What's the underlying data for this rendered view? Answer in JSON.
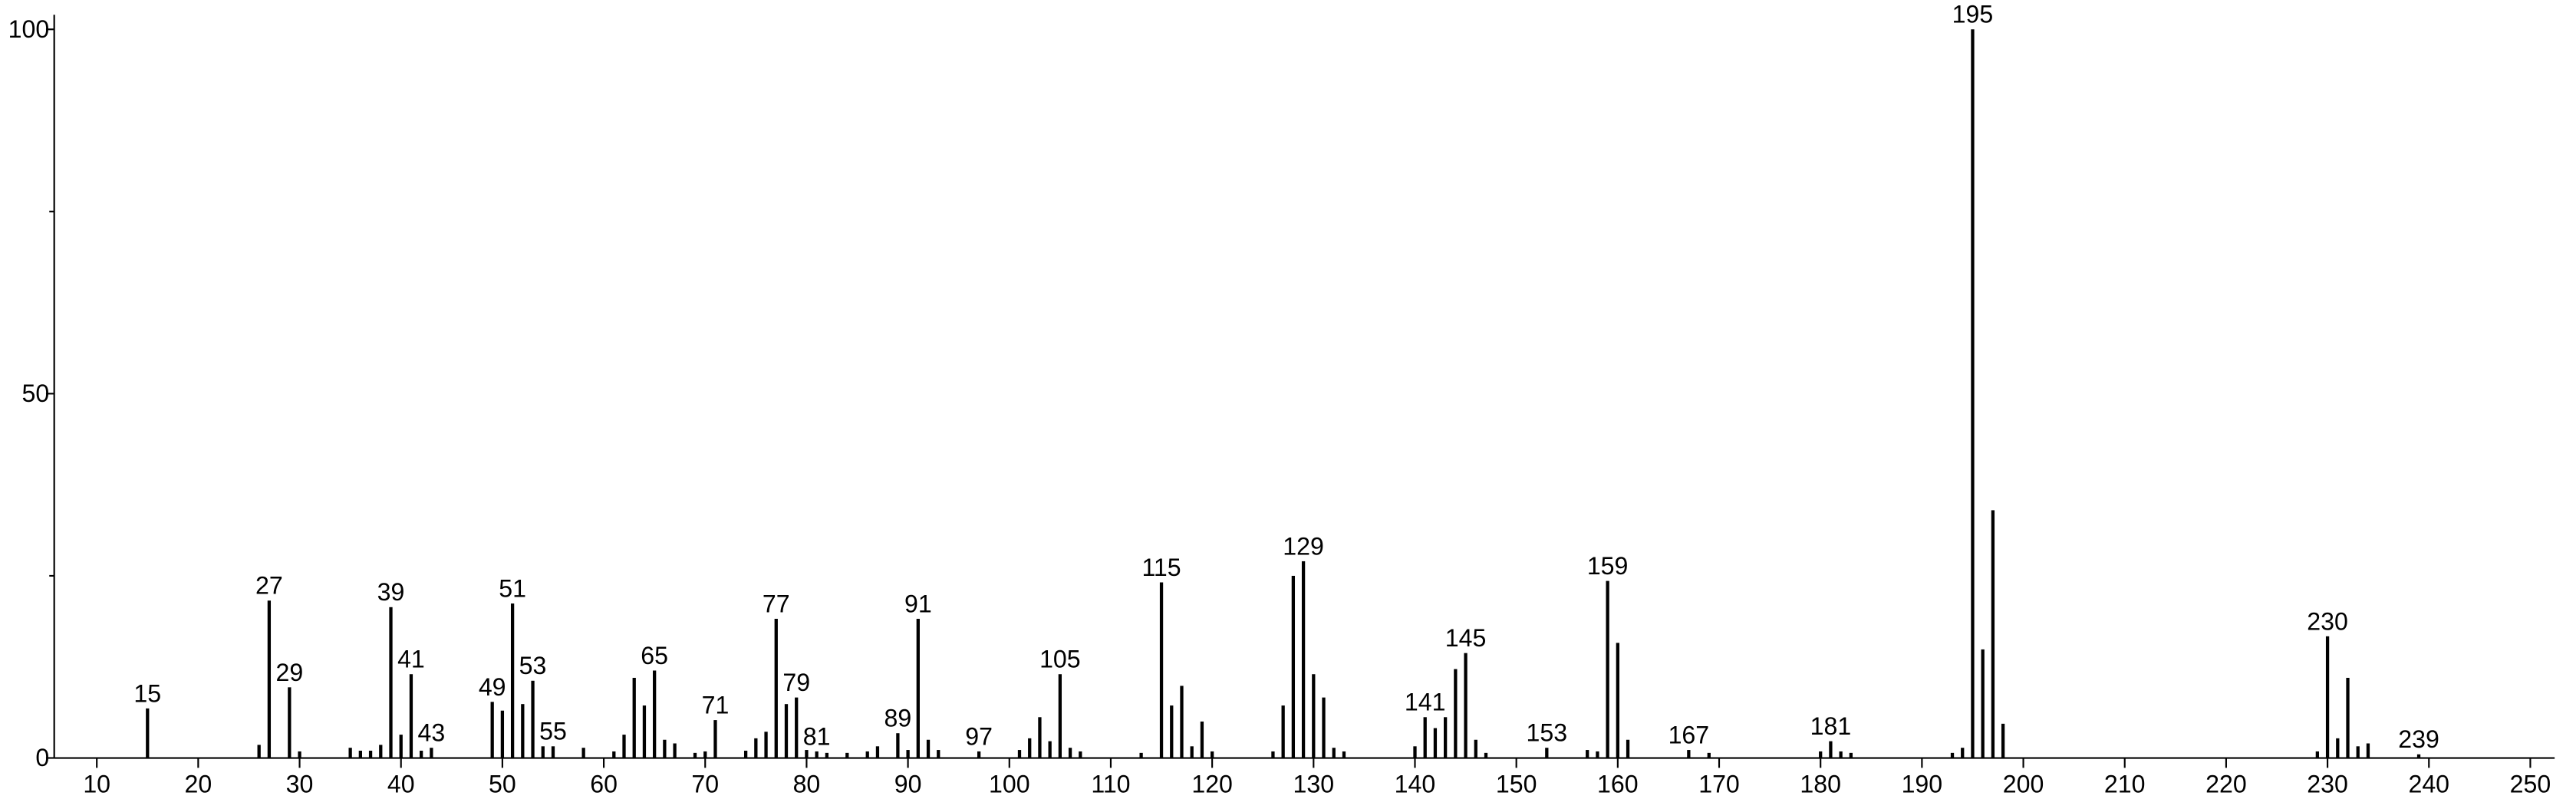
{
  "chart_data": {
    "type": "bar",
    "x": [
      15,
      26,
      27,
      29,
      30,
      35,
      36,
      37,
      38,
      39,
      40,
      41,
      42,
      43,
      49,
      50,
      51,
      52,
      53,
      54,
      55,
      58,
      61,
      62,
      63,
      64,
      65,
      66,
      67,
      69,
      70,
      71,
      74,
      75,
      76,
      77,
      78,
      79,
      80,
      81,
      82,
      84,
      86,
      87,
      89,
      90,
      91,
      92,
      93,
      97,
      101,
      102,
      103,
      104,
      105,
      106,
      107,
      113,
      115,
      116,
      117,
      118,
      119,
      120,
      126,
      127,
      128,
      129,
      130,
      131,
      132,
      133,
      140,
      141,
      142,
      143,
      144,
      145,
      146,
      147,
      153,
      157,
      158,
      159,
      160,
      161,
      167,
      169,
      180,
      181,
      182,
      183,
      193,
      194,
      195,
      196,
      197,
      198,
      229,
      230,
      231,
      232,
      233,
      234,
      239
    ],
    "values": [
      6.8,
      1.8,
      21.6,
      9.7,
      0.9,
      1.4,
      1,
      1,
      1.8,
      20.7,
      3.2,
      11.5,
      1,
      1.4,
      7.7,
      6.5,
      21.2,
      7.4,
      10.6,
      1.6,
      1.6,
      1.4,
      0.9,
      3.2,
      11,
      7.2,
      12,
      2.5,
      2,
      0.7,
      0.9,
      5.2,
      1,
      2.7,
      3.6,
      19.1,
      7.4,
      8.3,
      1.1,
      0.9,
      0.7,
      0.7,
      0.9,
      1.6,
      3.4,
      1.1,
      19.1,
      2.5,
      1.1,
      0.9,
      1.1,
      2.7,
      5.6,
      2.3,
      11.5,
      1.4,
      0.9,
      0.7,
      24.1,
      7.2,
      9.9,
      1.6,
      5,
      0.9,
      0.9,
      7.2,
      25,
      27,
      11.5,
      8.3,
      1.4,
      0.9,
      1.6,
      5.6,
      4.1,
      5.6,
      12.2,
      14.4,
      2.5,
      0.7,
      1.4,
      1.1,
      0.9,
      24.3,
      15.8,
      2.5,
      1.1,
      0.7,
      0.9,
      2.3,
      0.9,
      0.7,
      0.7,
      1.4,
      100,
      14.9,
      34,
      4.7,
      0.9,
      16.7,
      2.7,
      11,
      1.6,
      2,
      0.5
    ],
    "peak_labels": [
      "15",
      null,
      "27",
      "29",
      null,
      null,
      null,
      null,
      null,
      "39",
      null,
      "41",
      null,
      "43",
      "49",
      null,
      "51",
      null,
      "53",
      null,
      "55",
      null,
      null,
      null,
      null,
      null,
      "65",
      null,
      null,
      null,
      null,
      "71",
      null,
      null,
      null,
      "77",
      null,
      "79",
      null,
      "81",
      null,
      null,
      null,
      null,
      "89",
      null,
      "91",
      null,
      null,
      "97",
      null,
      null,
      null,
      null,
      "105",
      null,
      null,
      null,
      "115",
      null,
      null,
      null,
      null,
      null,
      null,
      null,
      null,
      "129",
      null,
      null,
      null,
      null,
      null,
      "141",
      null,
      null,
      null,
      "145",
      null,
      null,
      "153",
      null,
      null,
      "159",
      null,
      null,
      "167",
      null,
      null,
      "181",
      null,
      null,
      null,
      null,
      "195",
      null,
      null,
      null,
      null,
      "230",
      null,
      null,
      null,
      null,
      "239"
    ],
    "color": "#000000",
    "xlim": [
      5.8,
      252.4
    ],
    "xticks": [
      10,
      20,
      30,
      40,
      50,
      60,
      70,
      80,
      90,
      100,
      110,
      120,
      130,
      140,
      150,
      160,
      170,
      180,
      190,
      200,
      210,
      220,
      230,
      240,
      250
    ],
    "ylim": [
      0,
      102
    ],
    "yticks": [
      0,
      50,
      100
    ],
    "yminorticks": [
      25,
      75
    ]
  }
}
